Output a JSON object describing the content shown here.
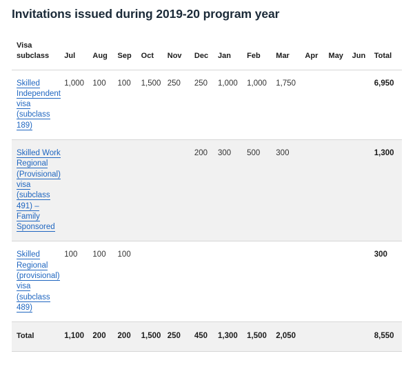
{
  "title": "Invitations issued during 2019-20 program year",
  "table": {
    "headers": [
      "Visa subclass",
      "Jul",
      "Aug",
      "Sep",
      "Oct",
      "Nov",
      "Dec",
      "Jan",
      "Feb",
      "Mar",
      "Apr",
      "May",
      "Jun",
      "Total"
    ],
    "rows": [
      {
        "label": "Skilled Independent visa (subclass 189)",
        "values": [
          "1,000",
          "100",
          "100",
          "1,500",
          "250",
          "250",
          "1,000",
          "1,000",
          "1,750",
          "",
          "",
          ""
        ],
        "total": "6,950"
      },
      {
        "label": "Skilled Work Regional (Provisional) visa (subclass 491) – Family Sponsored",
        "values": [
          "",
          "",
          "",
          "",
          "",
          "200",
          "300",
          "500",
          "300",
          "",
          "",
          ""
        ],
        "total": "1,300"
      },
      {
        "label": "Skilled Regional (provisional) visa (subclass 489)",
        "values": [
          "100",
          "100",
          "100",
          "",
          "",
          "",
          "",
          "",
          "",
          "",
          "",
          ""
        ],
        "total": "300"
      }
    ],
    "total_row": {
      "label": "Total",
      "values": [
        "1,100",
        "200",
        "200",
        "1,500",
        "250",
        "450",
        "1,300",
        "1,500",
        "2,050",
        "",
        "",
        ""
      ],
      "total": "8,550"
    }
  }
}
